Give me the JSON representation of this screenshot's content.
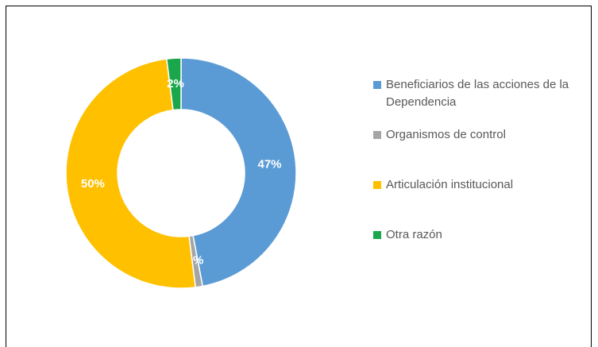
{
  "chart_data": {
    "type": "donut",
    "categories": [
      "Beneficiarios de las acciones de la Dependencia",
      "Organismos de control",
      "Articulación institucional",
      "Otra razón"
    ],
    "values": [
      47,
      1,
      50,
      2
    ],
    "value_labels": [
      "47%",
      "1%",
      "50%",
      "2%"
    ],
    "colors": [
      "#5b9bd5",
      "#a5a5a5",
      "#ffc000",
      "#1aa64a"
    ]
  }
}
